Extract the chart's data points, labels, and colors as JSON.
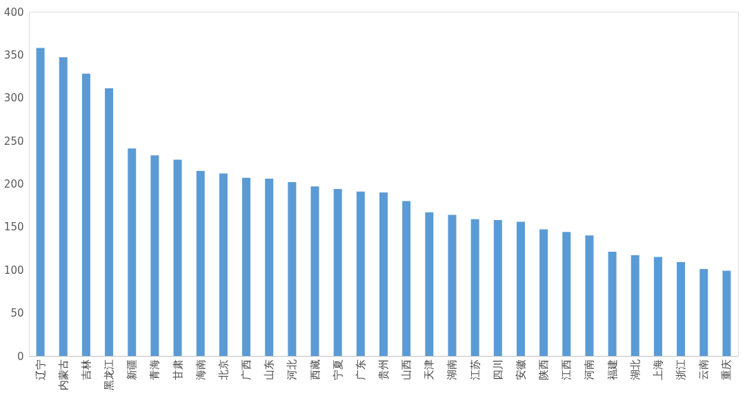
{
  "chart_data": {
    "type": "bar",
    "categories": [
      "辽宁",
      "内蒙古",
      "吉林",
      "黑龙江",
      "新疆",
      "青海",
      "甘肃",
      "海南",
      "北京",
      "广西",
      "山东",
      "河北",
      "西藏",
      "宁夏",
      "广东",
      "贵州",
      "山西",
      "天津",
      "湖南",
      "江苏",
      "四川",
      "安徽",
      "陕西",
      "江西",
      "河南",
      "福建",
      "湖北",
      "上海",
      "浙江",
      "云南",
      "重庆"
    ],
    "values": [
      358,
      347,
      328,
      311,
      241,
      233,
      228,
      215,
      212,
      207,
      206,
      202,
      197,
      194,
      191,
      190,
      180,
      167,
      164,
      159,
      158,
      156,
      147,
      144,
      140,
      121,
      117,
      115,
      109,
      101,
      99
    ],
    "color": "#5b9bd5",
    "ylim": [
      0,
      400
    ],
    "yticks": [
      0,
      50,
      100,
      150,
      200,
      250,
      300,
      350,
      400
    ],
    "grid": false
  }
}
